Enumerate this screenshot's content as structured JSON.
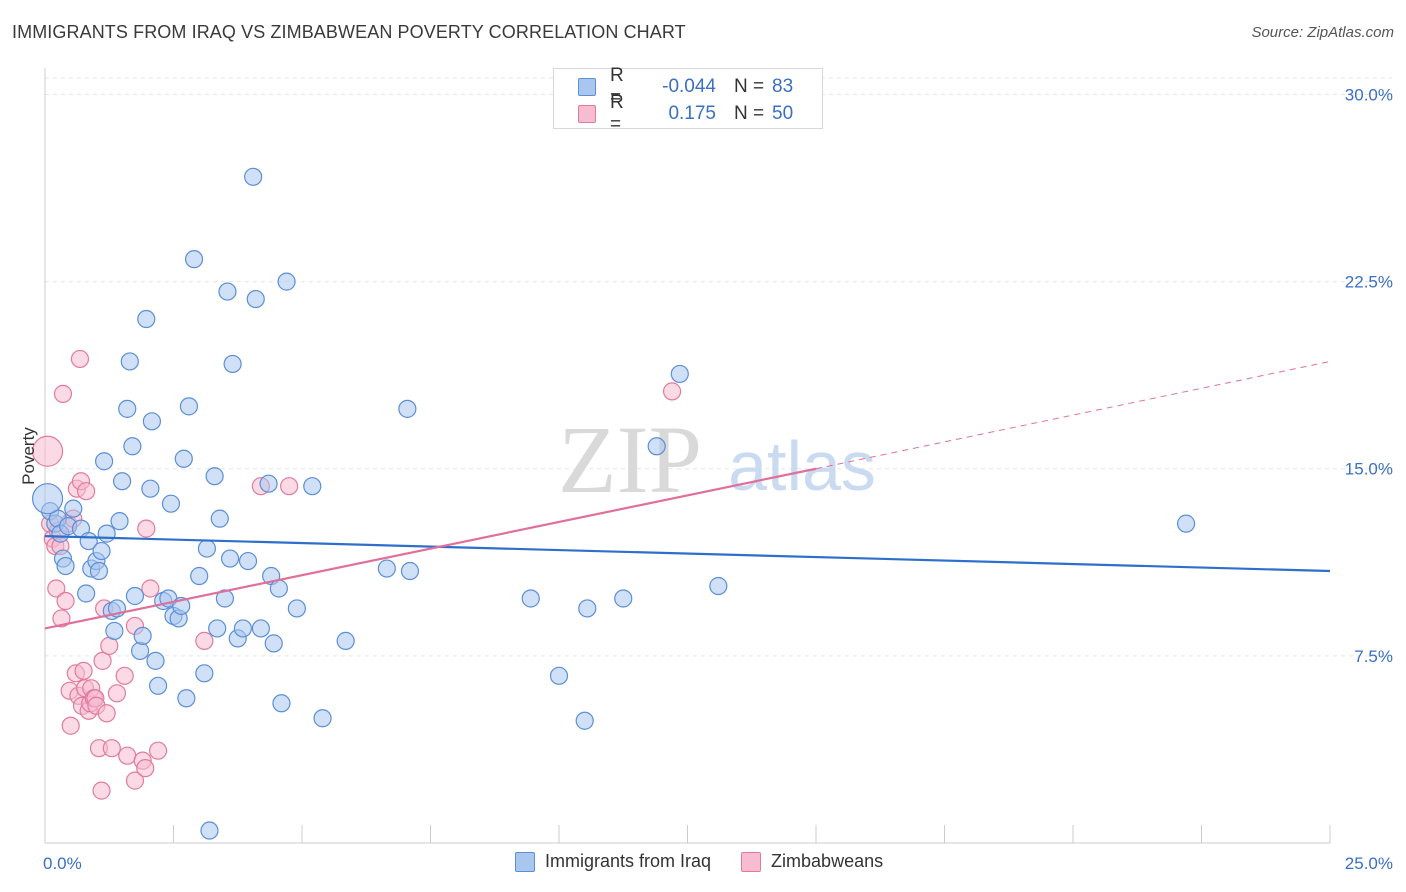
{
  "header": {
    "title": "IMMIGRANTS FROM IRAQ VS ZIMBABWEAN POVERTY CORRELATION CHART",
    "source": "Source: ZipAtlas.com"
  },
  "legend": {
    "rows": [
      {
        "r_label": "R =",
        "r_value": "-0.044",
        "n_label": "N =",
        "n_value": "83"
      },
      {
        "r_label": "R =",
        "r_value": "0.175",
        "n_label": "N =",
        "n_value": "50"
      }
    ]
  },
  "bottom_legend": {
    "series1": "Immigrants from Iraq",
    "series2": "Zimbabweans"
  },
  "colors": {
    "blue_fill": "#a9c7ee",
    "blue_stroke": "#5b8fd6",
    "blue_line": "#2f6fcc",
    "pink_fill": "#f7bcd0",
    "pink_stroke": "#e07b9f",
    "pink_line": "#e0709a",
    "tick_text": "#3a6fc4",
    "grid": "#e6e6e6"
  },
  "chart_data": {
    "type": "scatter",
    "title": "IMMIGRANTS FROM IRAQ VS ZIMBABWEAN POVERTY CORRELATION CHART",
    "xlabel": "",
    "ylabel": "Poverty",
    "xlim": [
      0,
      25
    ],
    "ylim": [
      0,
      30.5
    ],
    "x_tick_labels": [
      "0.0%",
      "25.0%"
    ],
    "y_ticks": [
      7.5,
      15.0,
      22.5,
      30.0
    ],
    "y_tick_labels": [
      "7.5%",
      "15.0%",
      "22.5%",
      "30.0%"
    ],
    "watermark": {
      "part1": "ZIP",
      "part2": "atlas"
    },
    "series": [
      {
        "name": "Immigrants from Iraq",
        "color": "blue",
        "points": [
          [
            0.1,
            13.3
          ],
          [
            0.2,
            12.8
          ],
          [
            0.25,
            13.0
          ],
          [
            0.3,
            12.4
          ],
          [
            0.35,
            11.4
          ],
          [
            0.4,
            11.1
          ],
          [
            0.45,
            12.7
          ],
          [
            0.55,
            13.4
          ],
          [
            0.7,
            12.6
          ],
          [
            0.8,
            10.0
          ],
          [
            0.85,
            12.1
          ],
          [
            0.9,
            11.0
          ],
          [
            1.0,
            11.3
          ],
          [
            1.1,
            11.7
          ],
          [
            1.05,
            10.9
          ],
          [
            1.15,
            15.3
          ],
          [
            1.2,
            12.4
          ],
          [
            1.3,
            9.3
          ],
          [
            1.35,
            8.5
          ],
          [
            1.4,
            9.4
          ],
          [
            1.45,
            12.9
          ],
          [
            1.5,
            14.5
          ],
          [
            1.6,
            17.4
          ],
          [
            1.65,
            19.3
          ],
          [
            1.7,
            15.9
          ],
          [
            1.75,
            9.9
          ],
          [
            1.85,
            7.7
          ],
          [
            1.9,
            8.3
          ],
          [
            1.97,
            21.0
          ],
          [
            2.05,
            14.2
          ],
          [
            2.08,
            16.9
          ],
          [
            2.15,
            7.3
          ],
          [
            2.2,
            6.3
          ],
          [
            2.3,
            9.7
          ],
          [
            2.4,
            9.8
          ],
          [
            2.45,
            13.6
          ],
          [
            2.5,
            9.1
          ],
          [
            2.6,
            9.0
          ],
          [
            2.65,
            9.5
          ],
          [
            2.7,
            15.4
          ],
          [
            2.75,
            5.8
          ],
          [
            2.8,
            17.5
          ],
          [
            2.9,
            23.4
          ],
          [
            3.0,
            10.7
          ],
          [
            3.1,
            6.8
          ],
          [
            3.15,
            11.8
          ],
          [
            3.2,
            0.5
          ],
          [
            3.3,
            14.7
          ],
          [
            3.35,
            8.6
          ],
          [
            3.4,
            13.0
          ],
          [
            3.5,
            9.8
          ],
          [
            3.55,
            22.1
          ],
          [
            3.6,
            11.4
          ],
          [
            3.65,
            19.2
          ],
          [
            3.75,
            8.2
          ],
          [
            3.85,
            8.6
          ],
          [
            3.95,
            11.3
          ],
          [
            4.05,
            26.7
          ],
          [
            4.1,
            21.8
          ],
          [
            4.2,
            8.6
          ],
          [
            4.35,
            14.4
          ],
          [
            4.4,
            10.7
          ],
          [
            4.45,
            8.0
          ],
          [
            4.55,
            10.2
          ],
          [
            4.6,
            5.6
          ],
          [
            4.7,
            22.5
          ],
          [
            4.9,
            9.4
          ],
          [
            5.2,
            14.3
          ],
          [
            5.4,
            5.0
          ],
          [
            5.85,
            8.1
          ],
          [
            6.65,
            11.0
          ],
          [
            7.05,
            17.4
          ],
          [
            7.1,
            10.9
          ],
          [
            9.45,
            9.8
          ],
          [
            10.0,
            6.7
          ],
          [
            10.5,
            4.9
          ],
          [
            10.55,
            9.4
          ],
          [
            11.25,
            9.8
          ],
          [
            11.9,
            15.9
          ],
          [
            12.35,
            18.8
          ],
          [
            13.1,
            10.3
          ],
          [
            22.2,
            12.8
          ],
          [
            0.05,
            13.8
          ]
        ]
      },
      {
        "name": "Zimbabweans",
        "color": "pink",
        "points": [
          [
            0.05,
            15.7
          ],
          [
            0.1,
            12.8
          ],
          [
            0.15,
            12.2
          ],
          [
            0.2,
            11.9
          ],
          [
            0.22,
            10.2
          ],
          [
            0.25,
            12.5
          ],
          [
            0.3,
            11.9
          ],
          [
            0.32,
            9.0
          ],
          [
            0.35,
            18.0
          ],
          [
            0.4,
            9.7
          ],
          [
            0.45,
            12.8
          ],
          [
            0.48,
            6.1
          ],
          [
            0.5,
            4.7
          ],
          [
            0.55,
            13.0
          ],
          [
            0.6,
            6.8
          ],
          [
            0.62,
            14.2
          ],
          [
            0.65,
            5.9
          ],
          [
            0.68,
            19.4
          ],
          [
            0.7,
            14.5
          ],
          [
            0.72,
            5.5
          ],
          [
            0.75,
            6.9
          ],
          [
            0.78,
            6.2
          ],
          [
            0.8,
            14.1
          ],
          [
            0.85,
            5.3
          ],
          [
            0.88,
            5.6
          ],
          [
            0.9,
            6.2
          ],
          [
            0.95,
            5.8
          ],
          [
            0.98,
            5.8
          ],
          [
            1.0,
            5.5
          ],
          [
            1.05,
            3.8
          ],
          [
            1.1,
            2.1
          ],
          [
            1.12,
            7.3
          ],
          [
            1.15,
            9.4
          ],
          [
            1.2,
            5.2
          ],
          [
            1.25,
            7.9
          ],
          [
            1.3,
            3.8
          ],
          [
            1.4,
            6.0
          ],
          [
            1.55,
            6.7
          ],
          [
            1.6,
            3.5
          ],
          [
            1.75,
            8.7
          ],
          [
            1.75,
            2.5
          ],
          [
            1.9,
            3.3
          ],
          [
            1.95,
            3.0
          ],
          [
            1.97,
            12.6
          ],
          [
            2.05,
            10.2
          ],
          [
            2.2,
            3.7
          ],
          [
            3.1,
            8.1
          ],
          [
            4.2,
            14.3
          ],
          [
            4.75,
            14.3
          ],
          [
            12.2,
            18.1
          ]
        ]
      }
    ],
    "trend_lines": [
      {
        "series": "Immigrants from Iraq",
        "x": [
          0,
          25
        ],
        "y": [
          12.3,
          10.9
        ],
        "style": "solid"
      },
      {
        "series": "Zimbabweans",
        "x": [
          0,
          15.0
        ],
        "y": [
          8.6,
          15.0
        ],
        "style": "solid"
      },
      {
        "series": "Zimbabweans",
        "x": [
          15.0,
          25
        ],
        "y": [
          15.0,
          19.3
        ],
        "style": "dashed"
      }
    ]
  }
}
